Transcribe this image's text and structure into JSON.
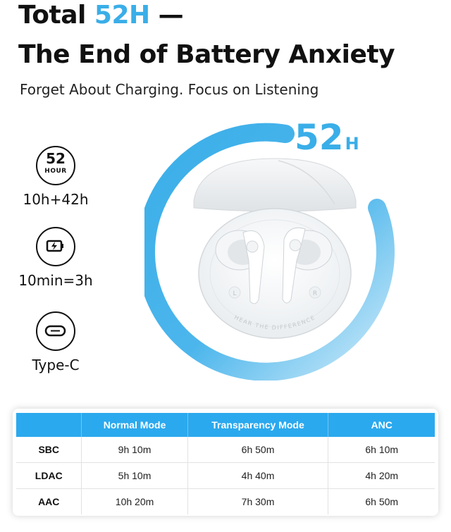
{
  "headline": {
    "prefix": "Total ",
    "highlight": "52H",
    "suffix": " —",
    "line2": "The End of Battery Anxiety"
  },
  "subheadline": "Forget About Charging. Focus on Listening",
  "ring": {
    "total_value": "52",
    "total_unit": "H",
    "colors": {
      "accent": "#3aaee8",
      "accent_light": "#cdeaf9"
    }
  },
  "product": {
    "case_text": "HEAR THE DIFFERENCE",
    "left_mark": "L",
    "right_mark": "R"
  },
  "features": [
    {
      "icon": "clock-52-hour-icon",
      "value": "52",
      "unit": "HOUR",
      "label": "10h+42h"
    },
    {
      "icon": "fast-charge-battery-icon",
      "label": "10min=3h"
    },
    {
      "icon": "usb-type-c-icon",
      "label": "Type-C"
    }
  ],
  "table": {
    "headers": [
      "",
      "Normal Mode",
      "Transparency Mode",
      "ANC"
    ],
    "rows": [
      {
        "codec": "SBC",
        "values": [
          "9h 10m",
          "6h 50m",
          "6h 10m"
        ]
      },
      {
        "codec": "LDAC",
        "values": [
          "5h 10m",
          "4h 40m",
          "4h 20m"
        ]
      },
      {
        "codec": "AAC",
        "values": [
          "10h 20m",
          "7h 30m",
          "6h 50m"
        ]
      }
    ],
    "header_color": "#2ba9ee"
  }
}
